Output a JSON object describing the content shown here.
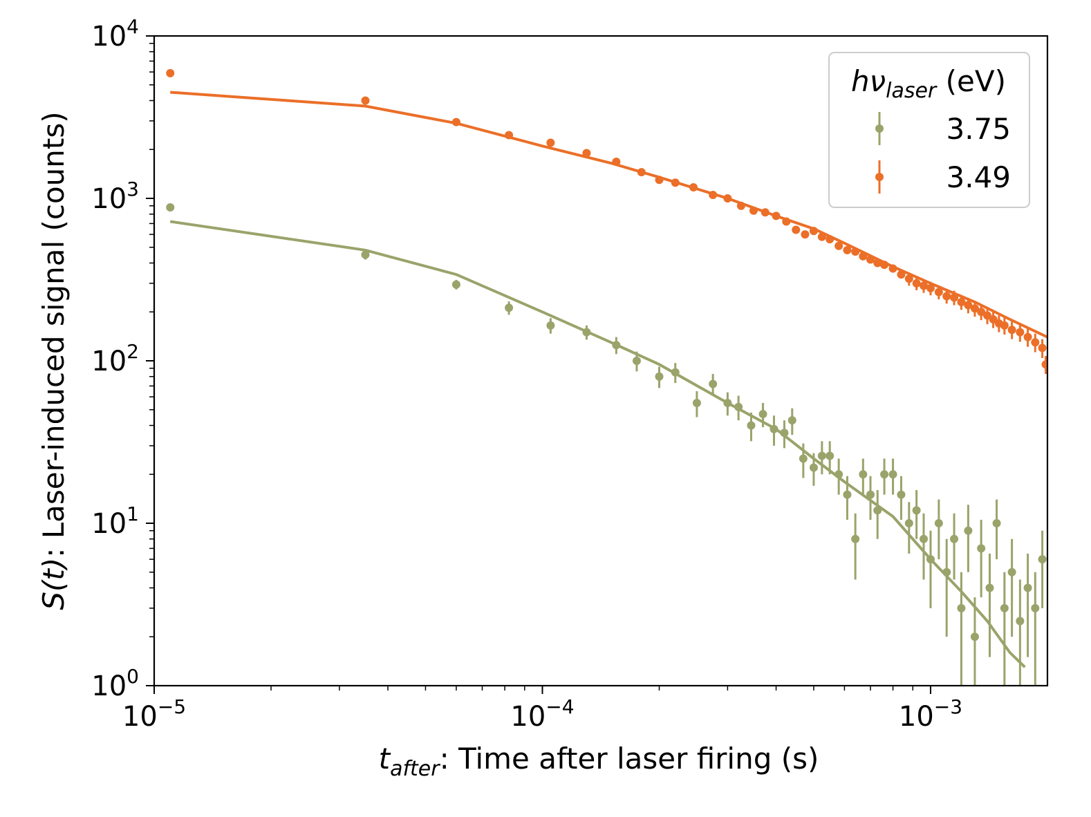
{
  "chart_data": {
    "type": "scatter",
    "title": "",
    "xscale": "log",
    "yscale": "log",
    "xlim": [
      1e-05,
      0.002
    ],
    "ylim": [
      1,
      10000
    ],
    "xlabel": {
      "symbol": "t",
      "sub": "after",
      "text": ": Time after laser firing (s)"
    },
    "ylabel": {
      "symbol": "S(t)",
      "text": ": Laser-induced signal (counts)"
    },
    "x_ticks": [
      {
        "base": "10",
        "exp": "−5",
        "value": 1e-05
      },
      {
        "base": "10",
        "exp": "−4",
        "value": 0.0001
      },
      {
        "base": "10",
        "exp": "−3",
        "value": 0.001
      }
    ],
    "y_ticks": [
      {
        "base": "10",
        "exp": "0",
        "value": 1
      },
      {
        "base": "10",
        "exp": "1",
        "value": 10
      },
      {
        "base": "10",
        "exp": "2",
        "value": 100
      },
      {
        "base": "10",
        "exp": "3",
        "value": 1000
      },
      {
        "base": "10",
        "exp": "4",
        "value": 10000
      }
    ],
    "legend": {
      "title_symbol": "hν",
      "title_sub": "laser",
      "title_unit": " (eV)",
      "placement": "upper-right"
    },
    "series": [
      {
        "name": "3.75",
        "color": "#9aa36a",
        "points": [
          [
            1.1e-05,
            880,
            0
          ],
          [
            3.5e-05,
            450,
            30
          ],
          [
            6e-05,
            295,
            20
          ],
          [
            8.2e-05,
            212,
            20
          ],
          [
            0.000105,
            165,
            18
          ],
          [
            0.00013,
            150,
            15
          ],
          [
            0.000155,
            125,
            15
          ],
          [
            0.000175,
            100,
            14
          ],
          [
            0.0002,
            80,
            12
          ],
          [
            0.00022,
            85,
            12
          ],
          [
            0.00025,
            55,
            10
          ],
          [
            0.000275,
            72,
            11
          ],
          [
            0.0003,
            55,
            9
          ],
          [
            0.00032,
            52,
            9
          ],
          [
            0.000345,
            40,
            8
          ],
          [
            0.00037,
            47,
            8
          ],
          [
            0.000395,
            38,
            8
          ],
          [
            0.00042,
            36,
            7
          ],
          [
            0.00044,
            43,
            8
          ],
          [
            0.00047,
            25,
            6
          ],
          [
            0.0005,
            22,
            5
          ],
          [
            0.000525,
            26,
            6
          ],
          [
            0.00055,
            26,
            6
          ],
          [
            0.00058,
            20,
            5
          ],
          [
            0.00061,
            15,
            4.5
          ],
          [
            0.00064,
            8,
            3.5
          ],
          [
            0.00067,
            20,
            5
          ],
          [
            0.0007,
            15,
            4.5
          ],
          [
            0.00073,
            12,
            4
          ],
          [
            0.00076,
            20,
            5
          ],
          [
            0.0008,
            20,
            5
          ],
          [
            0.00084,
            15,
            4.5
          ],
          [
            0.00088,
            10,
            3.5
          ],
          [
            0.00092,
            12,
            4
          ],
          [
            0.00096,
            8,
            3.5
          ],
          [
            0.001,
            6,
            3
          ],
          [
            0.00105,
            10,
            4
          ],
          [
            0.0011,
            5,
            3
          ],
          [
            0.00115,
            8,
            3.5
          ],
          [
            0.0012,
            3,
            2
          ],
          [
            0.00125,
            9,
            4
          ],
          [
            0.0013,
            2,
            1.5
          ],
          [
            0.00135,
            7,
            3.5
          ],
          [
            0.00142,
            4,
            2.5
          ],
          [
            0.00148,
            10,
            4
          ],
          [
            0.00155,
            3,
            2
          ],
          [
            0.00162,
            5,
            3
          ],
          [
            0.0017,
            2.5,
            2
          ],
          [
            0.00178,
            4,
            2.5
          ],
          [
            0.00186,
            3,
            2
          ],
          [
            0.00194,
            6,
            3
          ]
        ],
        "fit": [
          [
            1.1e-05,
            720
          ],
          [
            3.5e-05,
            480
          ],
          [
            6e-05,
            340
          ],
          [
            0.0001,
            200
          ],
          [
            0.00015,
            130
          ],
          [
            0.0002,
            95
          ],
          [
            0.0003,
            55
          ],
          [
            0.0004,
            38
          ],
          [
            0.0005,
            25
          ],
          [
            0.0006,
            18
          ],
          [
            0.0008,
            11
          ],
          [
            0.001,
            6
          ],
          [
            0.0012,
            3.8
          ],
          [
            0.0014,
            2.5
          ],
          [
            0.0016,
            1.6
          ],
          [
            0.00175,
            1.3
          ]
        ]
      },
      {
        "name": "3.49",
        "color": "#eb6f28",
        "points": [
          [
            1.1e-05,
            5900,
            0
          ],
          [
            3.5e-05,
            4000,
            0
          ],
          [
            6e-05,
            2950,
            0
          ],
          [
            8.2e-05,
            2450,
            0
          ],
          [
            0.000105,
            2200,
            0
          ],
          [
            0.00013,
            1900,
            0
          ],
          [
            0.000155,
            1680,
            0
          ],
          [
            0.00018,
            1450,
            0
          ],
          [
            0.0002,
            1300,
            0
          ],
          [
            0.00022,
            1250,
            0
          ],
          [
            0.000245,
            1170,
            0
          ],
          [
            0.000275,
            1050,
            0
          ],
          [
            0.0003,
            1000,
            0
          ],
          [
            0.000325,
            900,
            0
          ],
          [
            0.00035,
            840,
            0
          ],
          [
            0.000375,
            820,
            0
          ],
          [
            0.0004,
            780,
            0
          ],
          [
            0.000425,
            720,
            0
          ],
          [
            0.00045,
            640,
            0
          ],
          [
            0.000475,
            600,
            0
          ],
          [
            0.0005,
            630,
            0
          ],
          [
            0.000525,
            580,
            0
          ],
          [
            0.00055,
            560,
            0
          ],
          [
            0.00058,
            510,
            0
          ],
          [
            0.00061,
            480,
            0
          ],
          [
            0.00064,
            470,
            0
          ],
          [
            0.00067,
            440,
            0
          ],
          [
            0.0007,
            420,
            0
          ],
          [
            0.00073,
            400,
            0
          ],
          [
            0.00076,
            390,
            0
          ],
          [
            0.0008,
            370,
            0
          ],
          [
            0.00084,
            340,
            0
          ],
          [
            0.00088,
            320,
            30
          ],
          [
            0.00092,
            300,
            28
          ],
          [
            0.00096,
            290,
            28
          ],
          [
            0.001,
            280,
            27
          ],
          [
            0.00105,
            265,
            26
          ],
          [
            0.0011,
            250,
            25
          ],
          [
            0.00115,
            245,
            25
          ],
          [
            0.0012,
            230,
            24
          ],
          [
            0.00125,
            220,
            24
          ],
          [
            0.0013,
            210,
            23
          ],
          [
            0.00135,
            200,
            22
          ],
          [
            0.0014,
            190,
            22
          ],
          [
            0.00145,
            180,
            21
          ],
          [
            0.0015,
            170,
            20
          ],
          [
            0.00155,
            165,
            20
          ],
          [
            0.00162,
            155,
            19
          ],
          [
            0.0017,
            150,
            19
          ],
          [
            0.00178,
            140,
            18
          ],
          [
            0.00186,
            130,
            17
          ],
          [
            0.00194,
            120,
            16
          ],
          [
            0.00198,
            95,
            12
          ]
        ],
        "fit": [
          [
            1.1e-05,
            4500
          ],
          [
            3.5e-05,
            3700
          ],
          [
            6e-05,
            2900
          ],
          [
            0.0001,
            2100
          ],
          [
            0.00015,
            1650
          ],
          [
            0.0002,
            1350
          ],
          [
            0.0003,
            1000
          ],
          [
            0.0004,
            780
          ],
          [
            0.0005,
            650
          ],
          [
            0.0006,
            530
          ],
          [
            0.0008,
            380
          ],
          [
            0.001,
            300
          ],
          [
            0.0013,
            230
          ],
          [
            0.0016,
            180
          ],
          [
            0.002,
            140
          ]
        ]
      }
    ]
  }
}
